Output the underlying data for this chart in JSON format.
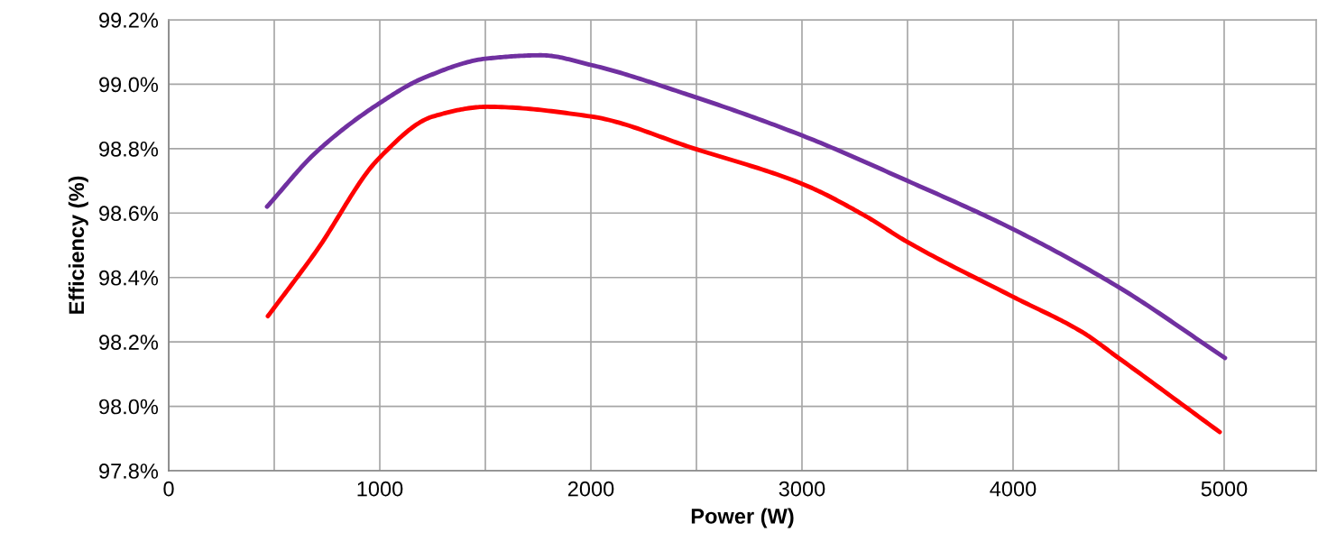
{
  "chart_data": {
    "type": "line",
    "xlabel": "Power (W)",
    "ylabel": "Efficiency (%)",
    "xlim": [
      0,
      5436
    ],
    "xticks": [
      0,
      {
        "value": 500,
        "label": null
      },
      1000,
      {
        "value": 1500,
        "label": null
      },
      2000,
      {
        "value": 2500,
        "label": null
      },
      3000,
      {
        "value": 3500,
        "label": null
      },
      4000,
      {
        "value": 4500,
        "label": null
      },
      5000
    ],
    "ylim": [
      97.8,
      99.2
    ],
    "yticks": [
      {
        "value": 97.8,
        "label": "97.8%"
      },
      {
        "value": 98.0,
        "label": "98.0%"
      },
      {
        "value": 98.2,
        "label": "98.2%"
      },
      {
        "value": 98.4,
        "label": "98.4%"
      },
      {
        "value": 98.6,
        "label": "98.6%"
      },
      {
        "value": 98.8,
        "label": "98.8%"
      },
      {
        "value": 99.0,
        "label": "99.0%"
      },
      {
        "value": 99.2,
        "label": "99.2%"
      }
    ],
    "grid": true,
    "marker": "none",
    "line_style": "solid",
    "series": [
      {
        "color": "#7030a0",
        "x": [
          466,
          700,
          996,
          1209,
          1509,
          1765,
          2000,
          2449,
          3004,
          3500,
          4000,
          4500,
          5004
        ],
        "values": [
          98.62,
          98.79,
          98.94,
          99.02,
          99.08,
          99.09,
          99.06,
          98.97,
          98.84,
          98.7,
          98.55,
          98.37,
          98.15
        ]
      },
      {
        "color": "#ff0000",
        "x": [
          470,
          697,
          996,
          1252,
          1509,
          2000,
          2491,
          3004,
          3303,
          3500,
          4000,
          4329,
          4500,
          4979
        ],
        "values": [
          98.28,
          98.48,
          98.77,
          98.9,
          98.93,
          98.9,
          98.8,
          98.69,
          98.59,
          98.51,
          98.34,
          98.23,
          98.15,
          97.92
        ]
      }
    ]
  }
}
